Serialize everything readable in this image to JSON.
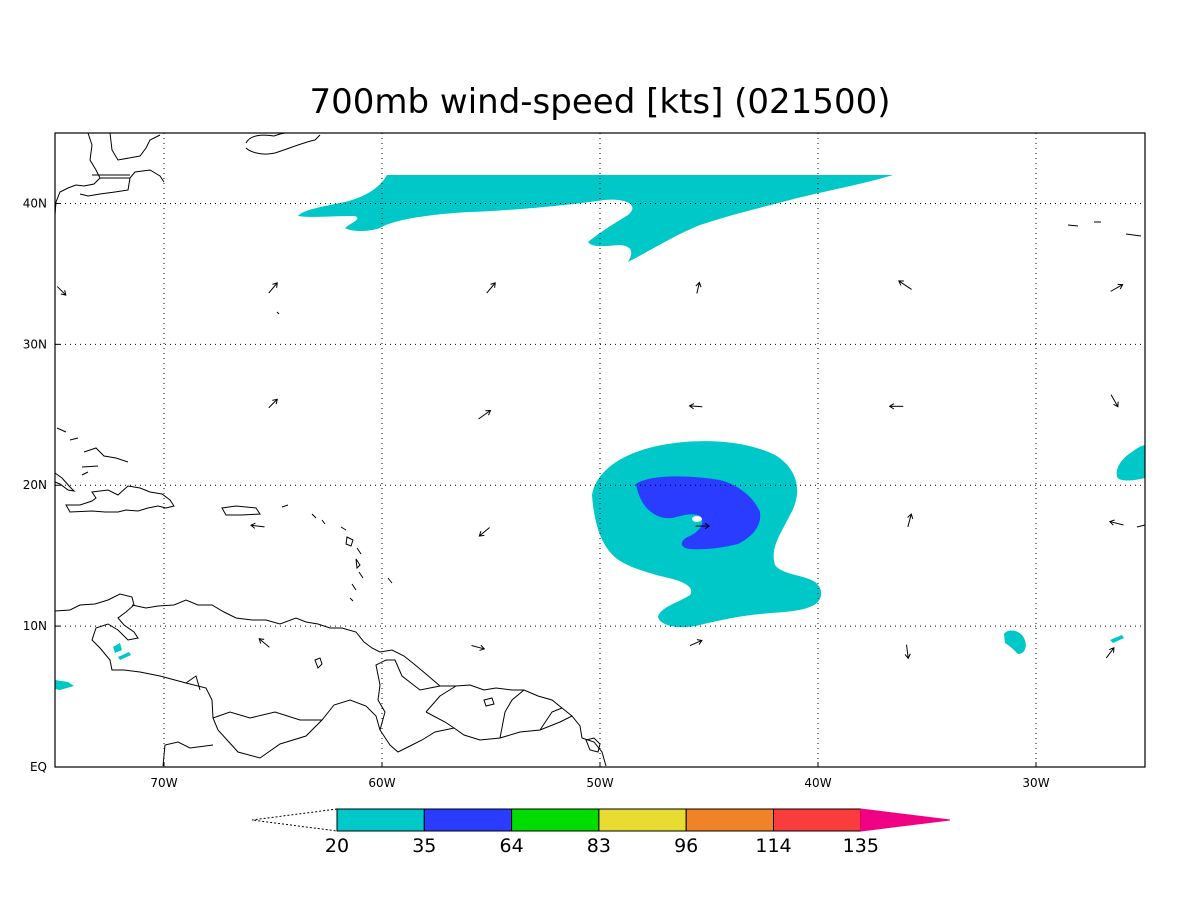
{
  "title": "700mb wind-speed [kts] (021500)",
  "x_axis": {
    "ticks": [
      "70W",
      "60W",
      "50W",
      "40W",
      "30W"
    ],
    "ticks_deg": [
      -70,
      -60,
      -50,
      -40,
      -30
    ],
    "range_deg": [
      -75,
      -25
    ]
  },
  "y_axis": {
    "ticks": [
      "EQ",
      "10N",
      "20N",
      "30N",
      "40N"
    ],
    "ticks_deg": [
      0,
      10,
      20,
      30,
      40
    ],
    "range_deg": [
      0,
      45
    ]
  },
  "grid": "dotted",
  "colorbar": {
    "labels": [
      "20",
      "35",
      "64",
      "83",
      "96",
      "114",
      "135"
    ],
    "colors": [
      "#00c8c8",
      "#2a3cff",
      "#00dc00",
      "#e6dc32",
      "#f08228",
      "#fa3c3c",
      "#f00082"
    ]
  },
  "contour_colors": {
    "kts_20_35": "#00c8c8",
    "kts_35_64": "#2a3cff"
  },
  "wind_vectors": [
    {
      "lon": -74.7,
      "lat": 33.8,
      "u": 1.0,
      "v": -1.0
    },
    {
      "lon": -65.0,
      "lat": 34.0,
      "u": 1.0,
      "v": 1.2
    },
    {
      "lon": -55.0,
      "lat": 34.0,
      "u": 1.0,
      "v": 1.2
    },
    {
      "lon": -45.5,
      "lat": 34.0,
      "u": 0.3,
      "v": 1.3
    },
    {
      "lon": -36.0,
      "lat": 34.2,
      "u": -1.5,
      "v": 1.0
    },
    {
      "lon": -26.3,
      "lat": 34.0,
      "u": 1.4,
      "v": 0.8
    },
    {
      "lon": -65.0,
      "lat": 25.8,
      "u": 1.0,
      "v": 1.0
    },
    {
      "lon": -55.3,
      "lat": 25.0,
      "u": 1.4,
      "v": 1.0
    },
    {
      "lon": -45.6,
      "lat": 25.6,
      "u": -1.5,
      "v": 0.1
    },
    {
      "lon": -36.4,
      "lat": 25.6,
      "u": -1.6,
      "v": 0.0
    },
    {
      "lon": -26.4,
      "lat": 26.0,
      "u": 0.8,
      "v": -1.4
    },
    {
      "lon": -65.7,
      "lat": 17.1,
      "u": -1.6,
      "v": 0.2
    },
    {
      "lon": -55.3,
      "lat": 16.7,
      "u": -1.2,
      "v": -1.0
    },
    {
      "lon": -45.3,
      "lat": 17.1,
      "u": 1.6,
      "v": 0.0
    },
    {
      "lon": -35.8,
      "lat": 17.5,
      "u": 0.4,
      "v": 1.5
    },
    {
      "lon": -26.3,
      "lat": 17.3,
      "u": -1.6,
      "v": 0.4
    },
    {
      "lon": -65.4,
      "lat": 8.8,
      "u": -1.2,
      "v": 1.0
    },
    {
      "lon": -55.6,
      "lat": 8.5,
      "u": 1.5,
      "v": -0.4
    },
    {
      "lon": -45.6,
      "lat": 8.8,
      "u": 1.4,
      "v": 0.6
    },
    {
      "lon": -35.9,
      "lat": 8.2,
      "u": 0.2,
      "v": -1.6
    },
    {
      "lon": -26.6,
      "lat": 8.1,
      "u": 0.9,
      "v": 1.2
    }
  ]
}
